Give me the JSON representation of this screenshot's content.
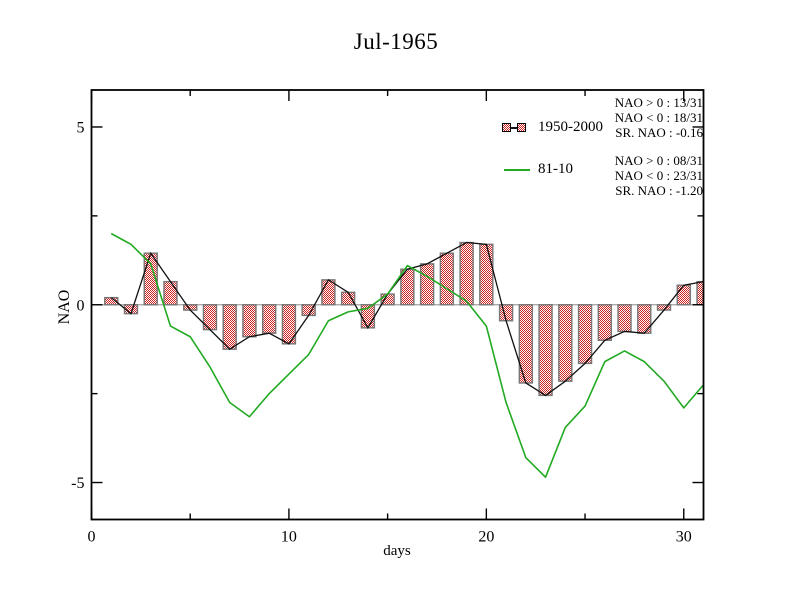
{
  "title": "Jul-1965",
  "chart_data": {
    "type": "bar",
    "title": "Jul-1965",
    "xlabel": "days",
    "ylabel": "NAO",
    "xlim": [
      0,
      31
    ],
    "ylim": [
      -6.04,
      6.04
    ],
    "x_major_ticks": [
      0,
      10,
      20,
      30
    ],
    "x_minor_ticks": [
      5,
      15,
      25
    ],
    "y_major_ticks": [
      5,
      0,
      -5
    ],
    "y_minor_ticks": [
      2.5,
      -2.5
    ],
    "x_tick_labels": [
      "0",
      "10",
      "20",
      "30"
    ],
    "y_tick_labels": [
      "5",
      "0",
      "-5"
    ],
    "grid": false,
    "legend_position": "inside-top-right",
    "x": [
      1,
      2,
      3,
      4,
      5,
      6,
      7,
      8,
      9,
      10,
      11,
      12,
      13,
      14,
      15,
      16,
      17,
      18,
      19,
      20,
      21,
      22,
      23,
      24,
      25,
      26,
      27,
      28,
      29,
      30,
      31
    ],
    "series": [
      {
        "name": "1950-2000",
        "type": "bar",
        "values": [
          0.2,
          -0.25,
          1.45,
          0.65,
          -0.15,
          -0.7,
          -1.25,
          -0.9,
          -0.8,
          -1.1,
          -0.3,
          0.7,
          0.35,
          -0.65,
          0.3,
          1.0,
          1.15,
          1.45,
          1.75,
          1.7,
          -0.45,
          -2.2,
          -2.55,
          -2.15,
          -1.65,
          -1.0,
          -0.75,
          -0.8,
          -0.15,
          0.55,
          0.65
        ]
      },
      {
        "name": "81-10",
        "type": "line",
        "values": [
          2.0,
          1.7,
          1.15,
          -0.6,
          -0.9,
          -1.75,
          -2.75,
          -3.15,
          -2.5,
          -1.95,
          -1.4,
          -0.45,
          -0.2,
          -0.1,
          0.3,
          1.1,
          0.8,
          0.45,
          0.1,
          -0.6,
          -2.75,
          -4.3,
          -4.85,
          -3.45,
          -2.85,
          -1.6,
          -1.3,
          -1.6,
          -2.15,
          -2.9,
          -2.25
        ]
      }
    ]
  },
  "legend": {
    "entries": [
      {
        "label": "1950-2000",
        "marker": "hatched-bar"
      },
      {
        "label": "81-10",
        "marker": "green-line"
      }
    ]
  },
  "stats": {
    "series1": {
      "pos": "NAO > 0 : 13/31",
      "neg": "NAO < 0 : 18/31",
      "sr": "SR. NAO : -0.16"
    },
    "series2": {
      "pos": "NAO > 0 : 08/31",
      "neg": "NAO < 0 : 23/31",
      "sr": "SR. NAO : -1.20"
    }
  },
  "colors": {
    "bar_fill": "#cc2222",
    "bar_outline": "#777777",
    "series_connector": "#111111",
    "climatology_line": "#22aa22",
    "zero_line": "#a0a0a0",
    "frame": "#000000",
    "text": "#000000",
    "background": "#ffffff"
  }
}
